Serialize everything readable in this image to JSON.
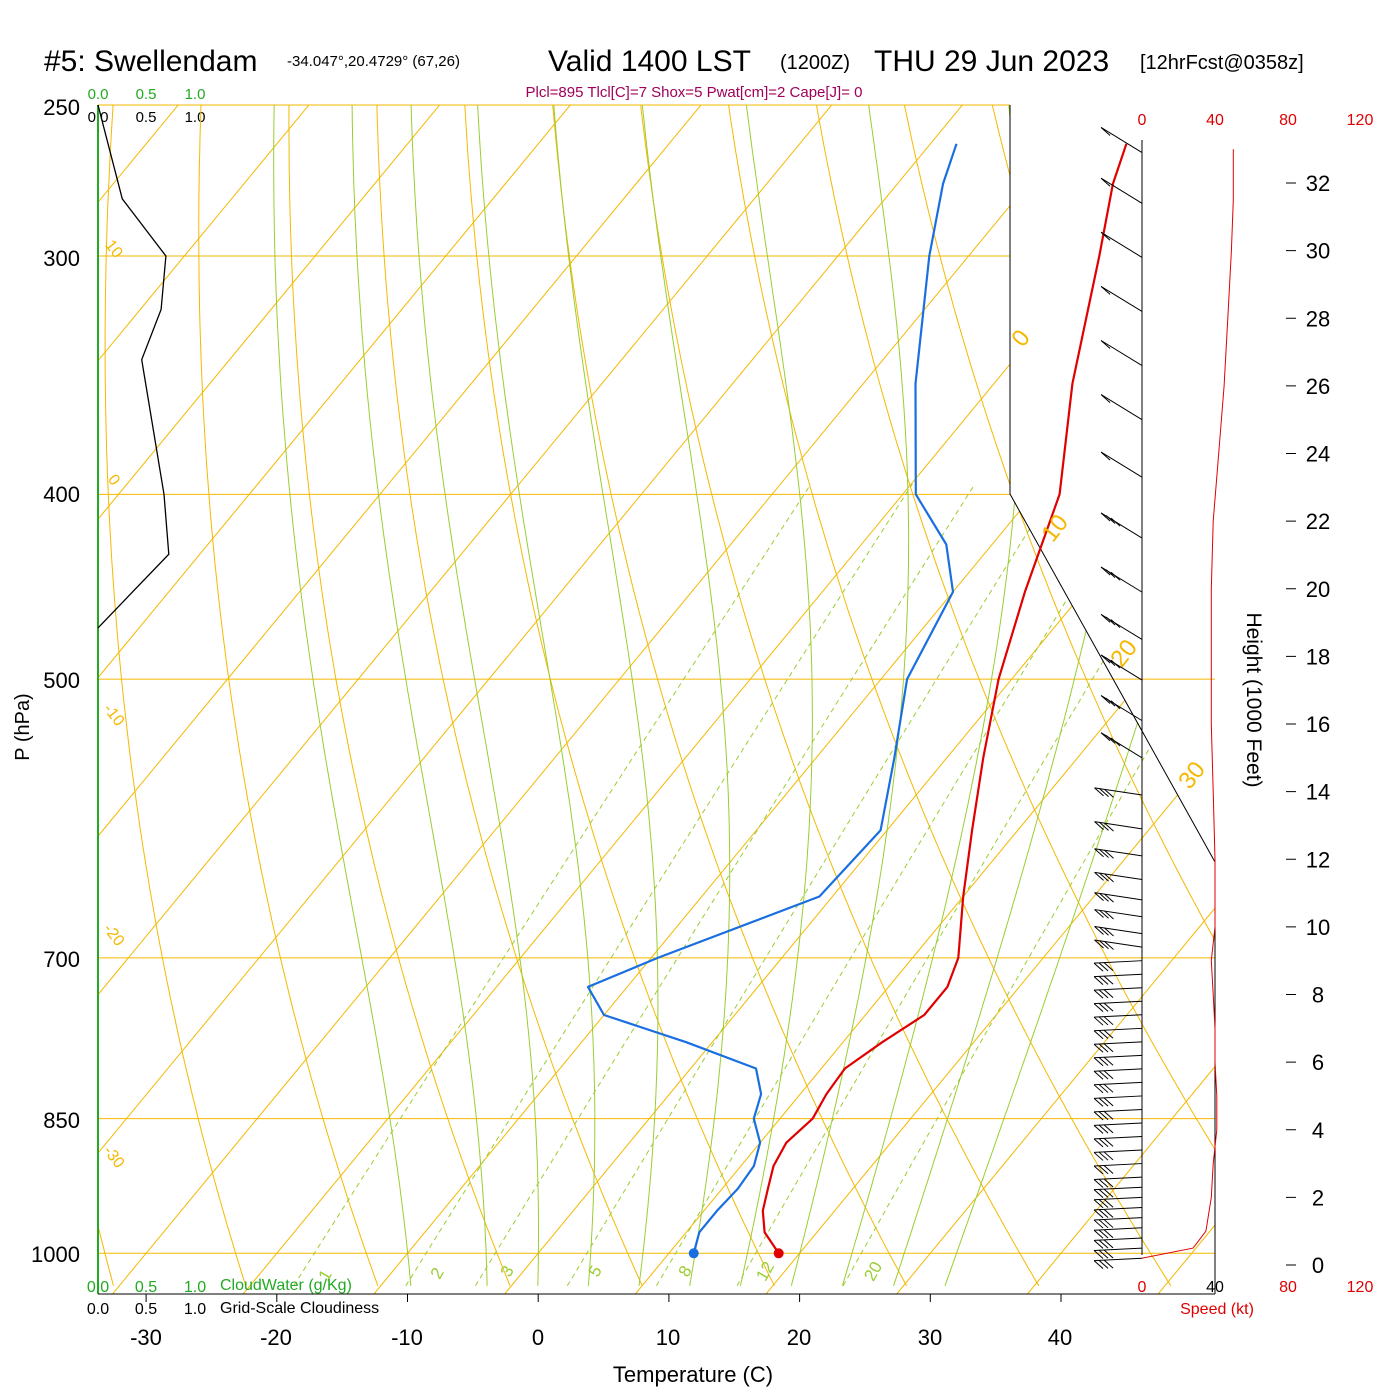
{
  "header": {
    "station": "#5: Swellendam",
    "coords": "-34.047°,20.4729° (67,26)",
    "valid": "Valid 1400 LST",
    "zulu": "(1200Z)",
    "date": "THU 29 Jun 2023",
    "fcst": "[12hrFcst@0358z]",
    "indices": "Plcl=895 Tlcl[C]=7 Shox=5 Pwat[cm]=2 Cape[J]= 0"
  },
  "colors": {
    "temperature": "#e00000",
    "dewpoint": "#1a6fe0",
    "isotherm": "#f5b800",
    "mixing_ratio": "#9acd32",
    "cloudwater": "#22aa22",
    "speed": "#e00000",
    "indices": "#a0005a"
  },
  "chart_data": {
    "type": "skew-t",
    "xlabel": "Temperature (C)",
    "ylabel": "P (hPa)",
    "y2label": "Height (1000 Feet)",
    "x_ticks": [
      "-30",
      "-20",
      "-10",
      "0",
      "10",
      "20",
      "30",
      "40"
    ],
    "pressure_ticks": [
      "250",
      "300",
      "400",
      "500",
      "700",
      "850",
      "1000"
    ],
    "height_ticks": [
      "0",
      "2",
      "4",
      "6",
      "8",
      "10",
      "12",
      "14",
      "16",
      "18",
      "20",
      "22",
      "24",
      "26",
      "28",
      "30",
      "32"
    ],
    "isotherm_labels": [
      "10",
      "0",
      "-10",
      "-20",
      "-30"
    ],
    "isotherm_labels_right": [
      "0",
      "10",
      "20",
      "30"
    ],
    "mixing_ratio_labels": [
      "1",
      "2",
      "3",
      "5",
      "8",
      "12",
      "20"
    ],
    "cloud_top_labels": [
      "0.0",
      "0.5",
      "1.0"
    ],
    "cloud_bottom_green": [
      "0.0",
      "0.5",
      "1.0"
    ],
    "cloudwater_label": "CloudWater (g/Kg)",
    "cloudiness_bottom": [
      "0.0",
      "0.5",
      "1.0"
    ],
    "cloudiness_label": "Grid-Scale Cloudiness",
    "speed_ticks_top": [
      "0",
      "40",
      "80",
      "120"
    ],
    "speed_ticks_bottom": [
      "0",
      "40",
      "80",
      "120"
    ],
    "speed_label": "Speed (kt)",
    "temperature": [
      {
        "p": 1000,
        "t": 18.4
      },
      {
        "p": 975,
        "t": 16.0
      },
      {
        "p": 950,
        "t": 14.5
      },
      {
        "p": 925,
        "t": 13.5
      },
      {
        "p": 900,
        "t": 12.5
      },
      {
        "p": 875,
        "t": 12.0
      },
      {
        "p": 850,
        "t": 12.5
      },
      {
        "p": 825,
        "t": 12.0
      },
      {
        "p": 800,
        "t": 11.8
      },
      {
        "p": 775,
        "t": 13.0
      },
      {
        "p": 750,
        "t": 14.5
      },
      {
        "p": 725,
        "t": 14.5
      },
      {
        "p": 700,
        "t": 13.5
      },
      {
        "p": 650,
        "t": 10.0
      },
      {
        "p": 600,
        "t": 6.5
      },
      {
        "p": 550,
        "t": 2.8
      },
      {
        "p": 500,
        "t": -1.0
      },
      {
        "p": 450,
        "t": -4.5
      },
      {
        "p": 400,
        "t": -8.0
      },
      {
        "p": 350,
        "t": -14.0
      },
      {
        "p": 300,
        "t": -20.0
      },
      {
        "p": 275,
        "t": -23.5
      },
      {
        "p": 262,
        "t": -25.0
      }
    ],
    "dewpoint": [
      {
        "p": 1000,
        "t": 11.9
      },
      {
        "p": 975,
        "t": 11.0
      },
      {
        "p": 950,
        "t": 11.0
      },
      {
        "p": 925,
        "t": 11.2
      },
      {
        "p": 900,
        "t": 11.0
      },
      {
        "p": 875,
        "t": 10.0
      },
      {
        "p": 850,
        "t": 8.0
      },
      {
        "p": 825,
        "t": 7.0
      },
      {
        "p": 800,
        "t": 5.0
      },
      {
        "p": 775,
        "t": -2.0
      },
      {
        "p": 750,
        "t": -10.0
      },
      {
        "p": 725,
        "t": -13.0
      },
      {
        "p": 700,
        "t": -9.5
      },
      {
        "p": 650,
        "t": -1.0
      },
      {
        "p": 600,
        "t": -0.5
      },
      {
        "p": 550,
        "t": -4.0
      },
      {
        "p": 500,
        "t": -8.0
      },
      {
        "p": 450,
        "t": -10.0
      },
      {
        "p": 425,
        "t": -13.5
      },
      {
        "p": 400,
        "t": -19.0
      },
      {
        "p": 350,
        "t": -26.0
      },
      {
        "p": 300,
        "t": -33.0
      },
      {
        "p": 275,
        "t": -36.5
      },
      {
        "p": 262,
        "t": -38.0
      }
    ],
    "surface_markers": [
      {
        "name": "temperature",
        "p": 1000,
        "t": 18.4
      },
      {
        "name": "dewpoint",
        "p": 1000,
        "t": 11.9
      }
    ],
    "wind_speed_profile": [
      {
        "h": 0.2,
        "s": 0
      },
      {
        "h": 0.5,
        "s": 28
      },
      {
        "h": 1.0,
        "s": 35
      },
      {
        "h": 2.0,
        "s": 38
      },
      {
        "h": 3.0,
        "s": 39
      },
      {
        "h": 4.0,
        "s": 41
      },
      {
        "h": 5.0,
        "s": 41
      },
      {
        "h": 6.0,
        "s": 40
      },
      {
        "h": 7.0,
        "s": 40
      },
      {
        "h": 8.0,
        "s": 39
      },
      {
        "h": 9.0,
        "s": 38
      },
      {
        "h": 10.0,
        "s": 40
      },
      {
        "h": 12.0,
        "s": 40
      },
      {
        "h": 14.0,
        "s": 39
      },
      {
        "h": 16.0,
        "s": 38
      },
      {
        "h": 18.0,
        "s": 38
      },
      {
        "h": 20.0,
        "s": 38
      },
      {
        "h": 22.0,
        "s": 39
      },
      {
        "h": 24.0,
        "s": 42
      },
      {
        "h": 26.0,
        "s": 45
      },
      {
        "h": 28.0,
        "s": 47
      },
      {
        "h": 30.0,
        "s": 49
      },
      {
        "h": 31.5,
        "s": 50
      },
      {
        "h": 33.0,
        "s": 50
      }
    ],
    "wind_barbs_heights": [
      0.2,
      0.5,
      0.8,
      1.1,
      1.4,
      1.7,
      2.0,
      2.3,
      2.6,
      3.0,
      3.4,
      3.8,
      4.2,
      4.6,
      5.0,
      5.4,
      5.8,
      6.2,
      6.6,
      7.0,
      7.4,
      7.8,
      8.2,
      8.6,
      9.0,
      9.4,
      9.8,
      10.3,
      10.8,
      11.4,
      12.1,
      12.9,
      13.9,
      15.0,
      16.1,
      17.3,
      18.5,
      19.9,
      21.5,
      23.3,
      25.0,
      26.6,
      28.2,
      29.8,
      31.4,
      32.9
    ],
    "cloud_profile": [
      {
        "p": 250,
        "c": 0.0
      },
      {
        "p": 280,
        "c": 0.25
      },
      {
        "p": 300,
        "c": 0.7
      },
      {
        "p": 320,
        "c": 0.65
      },
      {
        "p": 340,
        "c": 0.45
      },
      {
        "p": 400,
        "c": 0.68
      },
      {
        "p": 430,
        "c": 0.73
      },
      {
        "p": 470,
        "c": 0.0
      }
    ]
  }
}
